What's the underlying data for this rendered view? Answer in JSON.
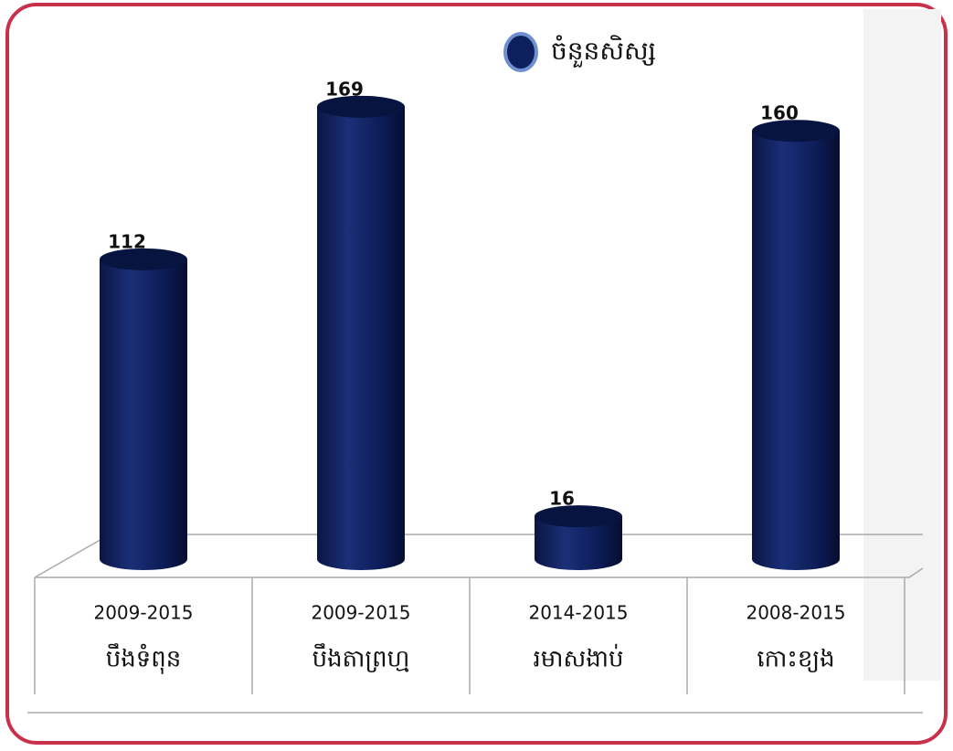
{
  "chart_data": {
    "type": "bar3d",
    "legend": "ចំនួនសិស្ស",
    "color": "#0d1f5c",
    "categories": [
      [
        "2009-2015",
        "បឹងទំពុន"
      ],
      [
        "2009-2015",
        "បឹងតាព្រហ្ម"
      ],
      [
        "2014-2015",
        "រមាសងាប់"
      ],
      [
        "2008-2015",
        "កោះខ្យង"
      ]
    ],
    "values": [
      112,
      169,
      16,
      160
    ]
  }
}
